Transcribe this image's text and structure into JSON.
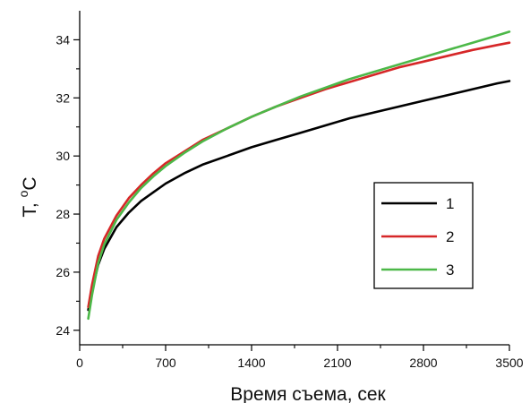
{
  "chart_data": {
    "type": "line",
    "title": "",
    "xlabel": "Время съема, сек",
    "ylabel_main": "T, ",
    "ylabel_sup": "o",
    "ylabel_unit": "C",
    "xlim": [
      0,
      3500
    ],
    "ylim": [
      23.5,
      35
    ],
    "xticks": [
      0,
      700,
      1400,
      2100,
      2800,
      3500
    ],
    "xtick_labels": [
      "0",
      "700",
      "1400",
      "2100",
      "2800",
      "3500"
    ],
    "yticks": [
      24,
      26,
      28,
      30,
      32,
      34
    ],
    "ytick_labels": [
      "24",
      "26",
      "28",
      "30",
      "32",
      "34"
    ],
    "grid": false,
    "legend_position": "center-right",
    "series": [
      {
        "name": "1",
        "color": "#000000",
        "x": [
          70,
          100,
          150,
          200,
          300,
          400,
          500,
          600,
          700,
          850,
          1000,
          1200,
          1400,
          1600,
          1800,
          2000,
          2200,
          2400,
          2600,
          2800,
          3000,
          3200,
          3400,
          3500
        ],
        "y": [
          24.7,
          25.35,
          26.25,
          26.8,
          27.55,
          28.05,
          28.45,
          28.75,
          29.05,
          29.4,
          29.7,
          30.0,
          30.3,
          30.55,
          30.8,
          31.05,
          31.3,
          31.5,
          31.7,
          31.9,
          32.1,
          32.3,
          32.5,
          32.58
        ]
      },
      {
        "name": "2",
        "color": "#d62728",
        "x": [
          70,
          100,
          150,
          200,
          300,
          400,
          500,
          600,
          700,
          850,
          1000,
          1200,
          1400,
          1600,
          1800,
          2000,
          2200,
          2400,
          2600,
          2800,
          3000,
          3200,
          3400,
          3500
        ],
        "y": [
          24.8,
          25.55,
          26.55,
          27.15,
          27.95,
          28.55,
          29.0,
          29.4,
          29.75,
          30.15,
          30.55,
          30.95,
          31.35,
          31.7,
          32.0,
          32.3,
          32.55,
          32.8,
          33.05,
          33.25,
          33.45,
          33.65,
          33.82,
          33.9
        ]
      },
      {
        "name": "3",
        "color": "#4cb848",
        "x": [
          70,
          100,
          150,
          200,
          300,
          400,
          500,
          600,
          700,
          850,
          1000,
          1200,
          1400,
          1600,
          1800,
          2000,
          2200,
          2400,
          2600,
          2800,
          3000,
          3200,
          3400,
          3500
        ],
        "y": [
          24.4,
          25.2,
          26.3,
          26.95,
          27.8,
          28.4,
          28.9,
          29.3,
          29.65,
          30.1,
          30.5,
          30.95,
          31.35,
          31.7,
          32.05,
          32.35,
          32.65,
          32.9,
          33.15,
          33.4,
          33.65,
          33.9,
          34.15,
          34.28
        ]
      }
    ]
  }
}
